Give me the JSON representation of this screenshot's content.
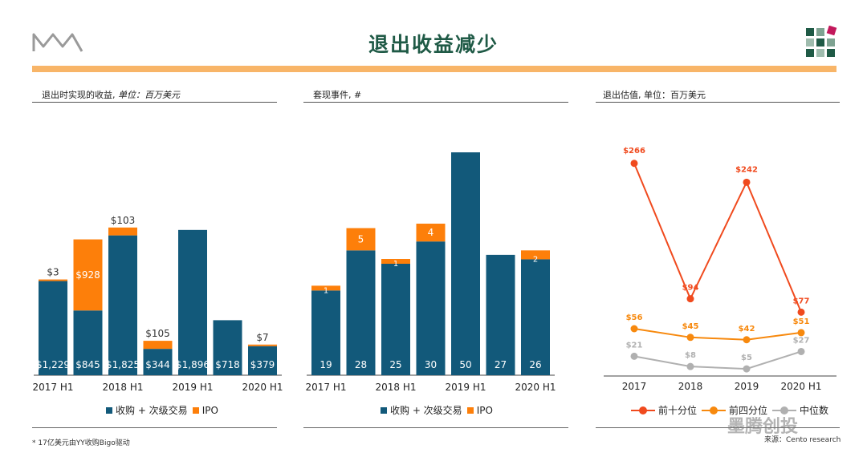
{
  "header": {
    "title": "退出收益减少",
    "logo_text": "MW"
  },
  "colors": {
    "acq": "#12597a",
    "ipo": "#fd7f0a",
    "accent_bar": "#f8b568",
    "title": "#1f5a46",
    "top_decile": "#f04a1e",
    "upper_quartile": "#f7890e",
    "median": "#b0b0b0"
  },
  "panels": {
    "left": {
      "title": "退出时实现的收益, ",
      "title_italic": "单位：百万美元"
    },
    "middle": {
      "title": "套现事件, #"
    },
    "right": {
      "title": "退出估值, 单位：百万美元"
    }
  },
  "legends": {
    "bar": {
      "acq": "收购 + 次级交易",
      "ipo": "IPO"
    },
    "line": {
      "top_decile": "前十分位",
      "upper_quartile": "前四分位",
      "median": "中位数"
    }
  },
  "footnote": "* 17亿美元由YY收购Bigo驱动",
  "source": "来源：Cento research",
  "watermark": "墨腾创投",
  "chart_data": [
    {
      "type": "bar",
      "stacked": true,
      "title": "退出时实现的收益, 单位：百万美元",
      "tick_labels": [
        "2017 H1",
        "",
        "2018 H1",
        "",
        "2019 H1",
        "",
        "2020 H1"
      ],
      "series": [
        {
          "name": "收购 + 次级交易",
          "values": [
            1229,
            845,
            1825,
            344,
            1896,
            718,
            379
          ],
          "labels": [
            "$1,229",
            "$845",
            "$1,825",
            "$344",
            "$1,896",
            "$718",
            "$379"
          ]
        },
        {
          "name": "IPO",
          "values": [
            3,
            928,
            103,
            105,
            0,
            0,
            7
          ],
          "labels": [
            "$3",
            "$928",
            "$103",
            "$105",
            "",
            "",
            "$7"
          ]
        }
      ],
      "ylim": [
        0,
        2100
      ]
    },
    {
      "type": "bar",
      "stacked": true,
      "title": "套现事件, #",
      "tick_labels": [
        "2017 H1",
        "",
        "2018 H1",
        "",
        "2019 H1",
        "",
        "2020 H1"
      ],
      "series": [
        {
          "name": "收购 + 次级交易",
          "values": [
            19,
            28,
            25,
            30,
            50,
            27,
            26
          ],
          "labels": [
            "19",
            "28",
            "25",
            "30",
            "50",
            "27",
            "26"
          ]
        },
        {
          "name": "IPO",
          "values": [
            1,
            5,
            1,
            4,
            0,
            0,
            2
          ],
          "labels": [
            "1",
            "5",
            "1",
            "4",
            "",
            "",
            "2"
          ]
        }
      ],
      "ylim": [
        0,
        55
      ]
    },
    {
      "type": "line",
      "title": "退出估值, 单位：百万美元",
      "categories": [
        "2017",
        "2018",
        "2019",
        "2020 H1"
      ],
      "series": [
        {
          "name": "前十分位",
          "values": [
            266,
            94,
            242,
            77
          ],
          "labels": [
            "$266",
            "$94",
            "$242",
            "$77"
          ]
        },
        {
          "name": "前四分位",
          "values": [
            56,
            45,
            42,
            51
          ],
          "labels": [
            "$56",
            "$45",
            "$42",
            "$51"
          ]
        },
        {
          "name": "中位数",
          "values": [
            21,
            8,
            5,
            27
          ],
          "labels": [
            "$21",
            "$8",
            "$5",
            "$27"
          ]
        }
      ],
      "ylim": [
        0,
        280
      ]
    }
  ]
}
